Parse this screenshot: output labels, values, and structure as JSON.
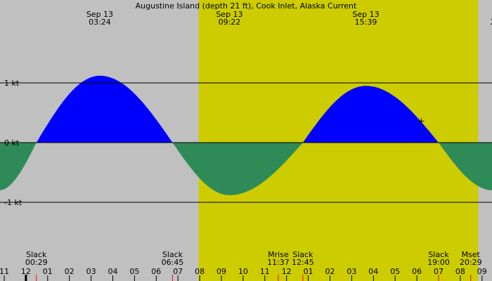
{
  "chart_data": {
    "type": "area",
    "title": "Augustine Island (depth 21 ft), Cook Inlet, Alaska Current",
    "x_unit": "hour",
    "xlim": [
      10.75,
      21.5
    ],
    "ylim": [
      -1.7,
      2.2
    ],
    "y_ticks": [
      {
        "value": 1,
        "label": "1 kt"
      },
      {
        "value": 0,
        "label": "0 kt"
      },
      {
        "value": -1,
        "label": "-1 kt"
      }
    ],
    "x_ticks": [
      {
        "value": 11,
        "label": "11"
      },
      {
        "value": 12,
        "label": "12"
      },
      {
        "value": 13,
        "label": "01"
      },
      {
        "value": 14,
        "label": "02"
      },
      {
        "value": 15,
        "label": "03"
      },
      {
        "value": 16,
        "label": "04"
      },
      {
        "value": 17,
        "label": "05"
      },
      {
        "value": 18,
        "label": "06"
      },
      {
        "value": 19,
        "label": "07"
      },
      {
        "value": 20,
        "label": "08"
      },
      {
        "value": 21,
        "label": "09"
      },
      {
        "value": 22,
        "label": "10"
      },
      {
        "value": 23,
        "label": "11"
      },
      {
        "value": 24,
        "label": "12"
      },
      {
        "value": 25,
        "label": "01"
      },
      {
        "value": 26,
        "label": "02"
      },
      {
        "value": 27,
        "label": "03"
      },
      {
        "value": 28,
        "label": "04"
      },
      {
        "value": 29,
        "label": "05"
      },
      {
        "value": 30,
        "label": "06"
      },
      {
        "value": 31,
        "label": "07"
      },
      {
        "value": 32,
        "label": "08"
      },
      {
        "value": 33,
        "label": "09"
      }
    ],
    "daylight": [
      19.95,
      32.82
    ],
    "curve": [
      {
        "x": 10.75,
        "y": -0.8
      },
      {
        "x": 12.48,
        "y": 0
      },
      {
        "x": 15.4,
        "y": 1.12
      },
      {
        "x": 18.75,
        "y": 0
      },
      {
        "x": 21.37,
        "y": -0.88
      },
      {
        "x": 24.75,
        "y": 0
      },
      {
        "x": 27.65,
        "y": 0.95
      },
      {
        "x": 31.0,
        "y": 0
      },
      {
        "x": 33.5,
        "y": -0.8
      }
    ],
    "peak_labels": [
      {
        "x": 15.4,
        "date": "Sep 13",
        "time": "03:24"
      },
      {
        "x": 21.37,
        "date": "Sep 13",
        "time": "09:22"
      },
      {
        "x": 27.65,
        "date": "Sep 13",
        "time": "15:39"
      },
      {
        "x": 33.5,
        "date": "",
        "time": "2"
      }
    ],
    "events": [
      {
        "x": 12.48,
        "label": "Slack",
        "time": "00:29",
        "align": "center"
      },
      {
        "x": 18.75,
        "label": "Slack",
        "time": "06:45",
        "align": "center"
      },
      {
        "x": 23.62,
        "label": "Mrise",
        "time": "11:37",
        "align": "center"
      },
      {
        "x": 24.75,
        "label": "Slack",
        "time": "12:45",
        "align": "center"
      },
      {
        "x": 31.0,
        "label": "Slack",
        "time": "19:00",
        "align": "center"
      },
      {
        "x": 32.48,
        "label": "Mset",
        "time": "20:29",
        "align": "center"
      }
    ],
    "now_marker": {
      "x": 12.0
    },
    "cursor": {
      "x": 30.2,
      "y": 0.36
    },
    "colors": {
      "flood": "#0000ff",
      "ebb": "#2e8b57",
      "night": "#c0c0c0",
      "day": "#cccc00",
      "event_tick": "#ff0000",
      "now_tick": "#000000"
    }
  }
}
